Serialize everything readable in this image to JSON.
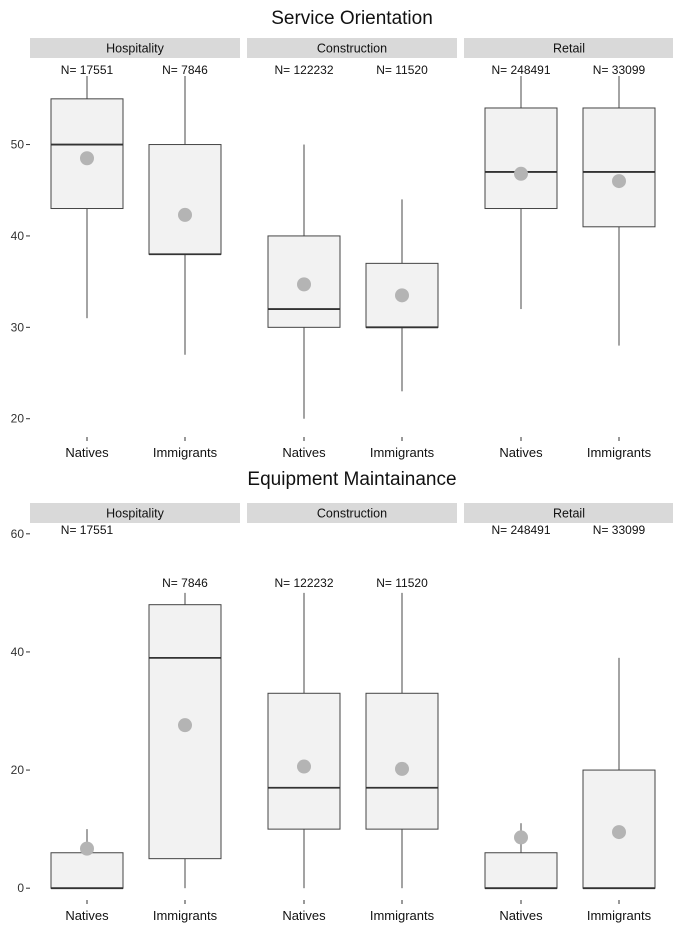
{
  "chart_data": [
    {
      "type": "box",
      "title": "Service Orientation",
      "facets": [
        "Hospitality",
        "Construction",
        "Retail"
      ],
      "categories": [
        "Natives",
        "Immigrants"
      ],
      "ylim": [
        18,
        57.5
      ],
      "yticks": [
        20,
        30,
        40,
        50
      ],
      "grid": false,
      "boxes": [
        {
          "facet": "Hospitality",
          "group": "Natives",
          "n": "N= 17551",
          "whisker_low": 31,
          "q1": 43,
          "median": 50,
          "q3": 55,
          "whisker_high": 57.5,
          "mean": 48.5
        },
        {
          "facet": "Hospitality",
          "group": "Immigrants",
          "n": "N= 7846",
          "whisker_low": 27,
          "q1": 38,
          "median": 38,
          "q3": 50,
          "whisker_high": 57.5,
          "mean": 42.3
        },
        {
          "facet": "Construction",
          "group": "Natives",
          "n": "N= 122232",
          "whisker_low": 20,
          "q1": 30,
          "median": 32,
          "q3": 40,
          "whisker_high": 50,
          "mean": 34.7
        },
        {
          "facet": "Construction",
          "group": "Immigrants",
          "n": "N= 11520",
          "whisker_low": 23,
          "q1": 30,
          "median": 30,
          "q3": 37,
          "whisker_high": 44,
          "mean": 33.5
        },
        {
          "facet": "Retail",
          "group": "Natives",
          "n": "N= 248491",
          "whisker_low": 32,
          "q1": 43,
          "median": 47,
          "q3": 54,
          "whisker_high": 57.5,
          "mean": 46.8
        },
        {
          "facet": "Retail",
          "group": "Immigrants",
          "n": "N= 33099",
          "whisker_low": 28,
          "q1": 41,
          "median": 47,
          "q3": 54,
          "whisker_high": 57.5,
          "mean": 46
        }
      ]
    },
    {
      "type": "box",
      "title": "Equipment Maintainance",
      "facets": [
        "Hospitality",
        "Construction",
        "Retail"
      ],
      "categories": [
        "Natives",
        "Immigrants"
      ],
      "ylim": [
        -2,
        62
      ],
      "yticks": [
        0,
        20,
        40,
        60
      ],
      "grid": false,
      "boxes": [
        {
          "facet": "Hospitality",
          "group": "Natives",
          "n": "N= 17551",
          "whisker_low": 0,
          "q1": 0,
          "median": 0,
          "q3": 6,
          "whisker_high": 10,
          "mean": 6.7
        },
        {
          "facet": "Hospitality",
          "group": "Immigrants",
          "n": "N= 7846",
          "whisker_low": 0,
          "q1": 5,
          "median": 39,
          "q3": 48,
          "whisker_high": 50,
          "mean": 27.6
        },
        {
          "facet": "Construction",
          "group": "Natives",
          "n": "N= 122232",
          "whisker_low": 0,
          "q1": 10,
          "median": 17,
          "q3": 33,
          "whisker_high": 50,
          "mean": 20.6
        },
        {
          "facet": "Construction",
          "group": "Immigrants",
          "n": "N= 11520",
          "whisker_low": 0,
          "q1": 10,
          "median": 17,
          "q3": 33,
          "whisker_high": 50,
          "mean": 20.2
        },
        {
          "facet": "Retail",
          "group": "Natives",
          "n": "N= 248491",
          "whisker_low": 0,
          "q1": 0,
          "median": 0,
          "q3": 6,
          "whisker_high": 11,
          "mean": 8.6
        },
        {
          "facet": "Retail",
          "group": "Immigrants",
          "n": "N= 33099",
          "whisker_low": 0,
          "q1": 0,
          "median": 0,
          "q3": 20,
          "whisker_high": 39,
          "mean": 9.5
        }
      ]
    }
  ],
  "colors": {
    "box_fill": "#f2f2f2",
    "box_outline": "#444444",
    "median_line": "#333333",
    "whisker": "#666666",
    "mean_point": "#b4b4b4",
    "strip_fill": "#d9d9d9"
  }
}
